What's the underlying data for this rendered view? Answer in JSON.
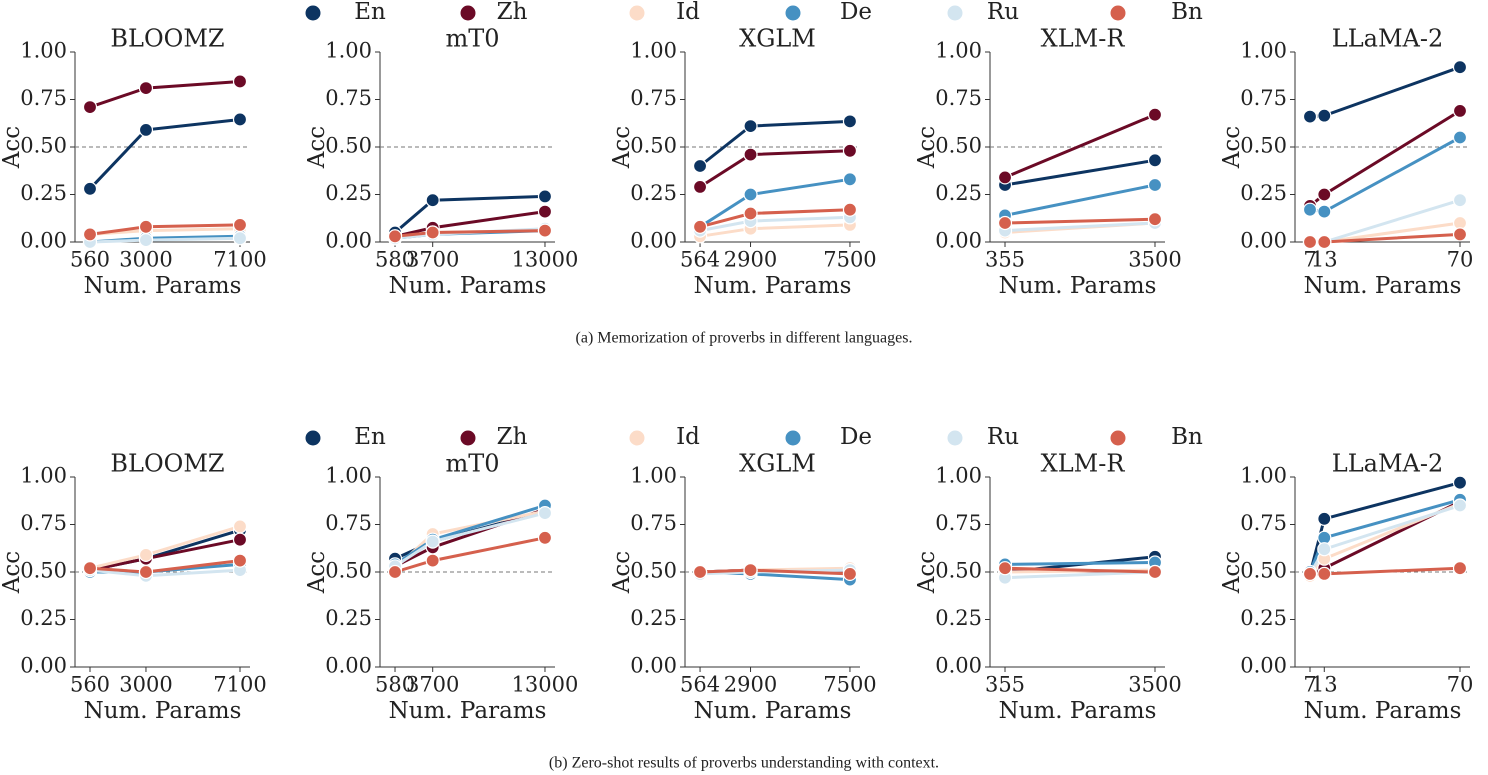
{
  "figures": [
    {
      "legend": [
        {
          "name": "En",
          "color": "#0d3461"
        },
        {
          "name": "Zh",
          "color": "#6b0a26"
        },
        {
          "name": "Id",
          "color": "#fcdcc8"
        },
        {
          "name": "De",
          "color": "#4691c2"
        },
        {
          "name": "Ru",
          "color": "#d3e5f0"
        },
        {
          "name": "Bn",
          "color": "#d5604d"
        }
      ],
      "caption": "(a) Memorization of proverbs in different languages."
    },
    {
      "legend": [
        {
          "name": "En",
          "color": "#0d3461"
        },
        {
          "name": "Zh",
          "color": "#6b0a26"
        },
        {
          "name": "Id",
          "color": "#fcdcc8"
        },
        {
          "name": "De",
          "color": "#4691c2"
        },
        {
          "name": "Ru",
          "color": "#d3e5f0"
        },
        {
          "name": "Bn",
          "color": "#d5604d"
        }
      ],
      "caption": "(b) Zero-shot results of proverbs understanding with context."
    }
  ],
  "chart_data": [
    {
      "type": "line",
      "title": "BLOOMZ",
      "x_label": "Num. Params",
      "y_label": "Acc",
      "x": [
        560,
        3000,
        7100
      ],
      "xlim": [
        124,
        7536
      ],
      "xticks": [
        560,
        3000,
        7100
      ],
      "ylim": [
        0,
        1
      ],
      "yticks": [
        {
          "value": 0,
          "label": "0.00"
        },
        {
          "value": 0.25,
          "label": "0.25"
        },
        {
          "value": 0.5,
          "label": "0.50"
        },
        {
          "value": 0.75,
          "label": "0.75"
        },
        {
          "value": 1,
          "label": "1.00"
        }
      ],
      "hline": 0.5,
      "series": [
        {
          "values": [
            0.28,
            0.59,
            0.645
          ]
        },
        {
          "values": [
            0.71,
            0.81,
            0.845
          ]
        },
        {
          "values": [
            0.04,
            0.06,
            0.07
          ]
        },
        {
          "values": [
            0.0,
            0.02,
            0.03
          ]
        },
        {
          "values": [
            0.0,
            0.01,
            0.02
          ]
        },
        {
          "values": [
            0.04,
            0.08,
            0.09
          ]
        }
      ]
    },
    {
      "type": "line",
      "title": "mT0",
      "x_label": "Num. Params",
      "y_label": "Acc",
      "x": [
        580,
        3700,
        13000
      ],
      "xlim": [
        -250,
        13830
      ],
      "xticks": [
        580,
        3700,
        13000
      ],
      "ylim": [
        0,
        1
      ],
      "yticks": [
        {
          "value": 0,
          "label": "0.00"
        },
        {
          "value": 0.25,
          "label": "0.25"
        },
        {
          "value": 0.5,
          "label": "0.50"
        },
        {
          "value": 0.75,
          "label": "0.75"
        },
        {
          "value": 1,
          "label": "1.00"
        }
      ],
      "hline": 0.5,
      "series": [
        {
          "values": [
            0.05,
            0.22,
            0.24
          ]
        },
        {
          "values": [
            0.03,
            0.075,
            0.16
          ]
        },
        {
          "values": [
            0.02,
            0.05,
            0.06
          ]
        },
        {
          "values": [
            0.02,
            0.04,
            0.06
          ]
        },
        {
          "values": [
            0.02,
            0.04,
            0.07
          ]
        },
        {
          "values": [
            0.03,
            0.05,
            0.06
          ]
        }
      ]
    },
    {
      "type": "line",
      "title": "XGLM",
      "x_label": "Num. Params",
      "y_label": "Acc",
      "x": [
        564,
        2900,
        7500
      ],
      "xlim": [
        99,
        7965
      ],
      "xticks": [
        564,
        2900,
        7500
      ],
      "ylim": [
        0,
        1
      ],
      "yticks": [
        {
          "value": 0,
          "label": "0.00"
        },
        {
          "value": 0.25,
          "label": "0.25"
        },
        {
          "value": 0.5,
          "label": "0.50"
        },
        {
          "value": 0.75,
          "label": "0.75"
        },
        {
          "value": 1,
          "label": "1.00"
        }
      ],
      "hline": 0.5,
      "series": [
        {
          "values": [
            0.4,
            0.61,
            0.635
          ]
        },
        {
          "values": [
            0.29,
            0.46,
            0.48
          ]
        },
        {
          "values": [
            0.03,
            0.07,
            0.09
          ]
        },
        {
          "values": [
            0.08,
            0.25,
            0.33
          ]
        },
        {
          "values": [
            0.06,
            0.11,
            0.13
          ]
        },
        {
          "values": [
            0.08,
            0.15,
            0.17
          ]
        }
      ]
    },
    {
      "type": "line",
      "title": "XLM-R",
      "x_label": "Num. Params",
      "y_label": "Acc",
      "x": [
        355,
        3500
      ],
      "xlim": [
        145,
        3710
      ],
      "xticks": [
        355,
        3500
      ],
      "ylim": [
        0,
        1
      ],
      "yticks": [
        {
          "value": 0,
          "label": "0.00"
        },
        {
          "value": 0.25,
          "label": "0.25"
        },
        {
          "value": 0.5,
          "label": "0.50"
        },
        {
          "value": 0.75,
          "label": "0.75"
        },
        {
          "value": 1,
          "label": "1.00"
        }
      ],
      "hline": 0.5,
      "series": [
        {
          "values": [
            0.3,
            0.43
          ]
        },
        {
          "values": [
            0.34,
            0.67
          ]
        },
        {
          "values": [
            0.05,
            0.1
          ]
        },
        {
          "values": [
            0.14,
            0.3
          ]
        },
        {
          "values": [
            0.06,
            0.1
          ]
        },
        {
          "values": [
            0.1,
            0.12
          ]
        }
      ]
    },
    {
      "type": "line",
      "title": "LLaMA-2",
      "x_label": "Num. Params",
      "y_label": "Acc",
      "x": [
        7,
        13,
        70
      ],
      "xlim": [
        2.8,
        74.2
      ],
      "xticks": [
        7,
        13,
        70
      ],
      "ylim": [
        0,
        1
      ],
      "yticks": [
        {
          "value": 0,
          "label": "0.00"
        },
        {
          "value": 0.25,
          "label": "0.25"
        },
        {
          "value": 0.5,
          "label": "0.50"
        },
        {
          "value": 0.75,
          "label": "0.75"
        },
        {
          "value": 1,
          "label": "1.00"
        }
      ],
      "hline": 0.5,
      "series": [
        {
          "values": [
            0.66,
            0.665,
            0.92
          ]
        },
        {
          "values": [
            0.19,
            0.25,
            0.69
          ]
        },
        {
          "values": [
            0.0,
            0.0,
            0.1
          ]
        },
        {
          "values": [
            0.17,
            0.16,
            0.55
          ]
        },
        {
          "values": [
            0.0,
            0.0,
            0.22
          ]
        },
        {
          "values": [
            0.0,
            0.0,
            0.04
          ]
        }
      ]
    },
    {
      "type": "line",
      "title": "BLOOMZ",
      "x_label": "Num. Params",
      "y_label": "Acc",
      "x": [
        560,
        3000,
        7100
      ],
      "xlim": [
        124,
        7536
      ],
      "xticks": [
        560,
        3000,
        7100
      ],
      "ylim": [
        0,
        1
      ],
      "yticks": [
        {
          "value": 0,
          "label": "0.00"
        },
        {
          "value": 0.25,
          "label": "0.25"
        },
        {
          "value": 0.5,
          "label": "0.50"
        },
        {
          "value": 0.75,
          "label": "0.75"
        },
        {
          "value": 1,
          "label": "1.00"
        }
      ],
      "hline": 0.5,
      "series": [
        {
          "values": [
            0.51,
            0.57,
            0.72
          ]
        },
        {
          "values": [
            0.51,
            0.57,
            0.67
          ]
        },
        {
          "values": [
            0.52,
            0.59,
            0.74
          ]
        },
        {
          "values": [
            0.5,
            0.5,
            0.54
          ]
        },
        {
          "values": [
            0.51,
            0.48,
            0.51
          ]
        },
        {
          "values": [
            0.52,
            0.5,
            0.56
          ]
        }
      ]
    },
    {
      "type": "line",
      "title": "mT0",
      "x_label": "Num. Params",
      "y_label": "Acc",
      "x": [
        580,
        3700,
        13000
      ],
      "xlim": [
        -250,
        13830
      ],
      "xticks": [
        580,
        3700,
        13000
      ],
      "ylim": [
        0,
        1
      ],
      "yticks": [
        {
          "value": 0,
          "label": "0.00"
        },
        {
          "value": 0.25,
          "label": "0.25"
        },
        {
          "value": 0.5,
          "label": "0.50"
        },
        {
          "value": 0.75,
          "label": "0.75"
        },
        {
          "value": 1,
          "label": "1.00"
        }
      ],
      "hline": 0.5,
      "series": [
        {
          "values": [
            0.57,
            0.66,
            0.82
          ]
        },
        {
          "values": [
            0.53,
            0.63,
            0.83
          ]
        },
        {
          "values": [
            0.52,
            0.7,
            0.82
          ]
        },
        {
          "values": [
            0.54,
            0.67,
            0.85
          ]
        },
        {
          "values": [
            0.53,
            0.66,
            0.81
          ]
        },
        {
          "values": [
            0.5,
            0.56,
            0.68
          ]
        }
      ]
    },
    {
      "type": "line",
      "title": "XGLM",
      "x_label": "Num. Params",
      "y_label": "Acc",
      "x": [
        564,
        2900,
        7500
      ],
      "xlim": [
        99,
        7965
      ],
      "xticks": [
        564,
        2900,
        7500
      ],
      "ylim": [
        0,
        1
      ],
      "yticks": [
        {
          "value": 0,
          "label": "0.00"
        },
        {
          "value": 0.25,
          "label": "0.25"
        },
        {
          "value": 0.5,
          "label": "0.50"
        },
        {
          "value": 0.75,
          "label": "0.75"
        },
        {
          "value": 1,
          "label": "1.00"
        }
      ],
      "hline": 0.5,
      "series": [
        {
          "values": [
            0.5,
            0.51,
            0.51
          ]
        },
        {
          "values": [
            0.5,
            0.51,
            0.5
          ]
        },
        {
          "values": [
            0.5,
            0.51,
            0.52
          ]
        },
        {
          "values": [
            0.5,
            0.49,
            0.46
          ]
        },
        {
          "values": [
            0.49,
            0.5,
            0.51
          ]
        },
        {
          "values": [
            0.5,
            0.51,
            0.49
          ]
        }
      ]
    },
    {
      "type": "line",
      "title": "XLM-R",
      "x_label": "Num. Params",
      "y_label": "Acc",
      "x": [
        355,
        3500
      ],
      "xlim": [
        145,
        3710
      ],
      "xticks": [
        355,
        3500
      ],
      "ylim": [
        0,
        1
      ],
      "yticks": [
        {
          "value": 0,
          "label": "0.00"
        },
        {
          "value": 0.25,
          "label": "0.25"
        },
        {
          "value": 0.5,
          "label": "0.50"
        },
        {
          "value": 0.75,
          "label": "0.75"
        },
        {
          "value": 1,
          "label": "1.00"
        }
      ],
      "hline": 0.5,
      "series": [
        {
          "values": [
            0.5,
            0.58
          ]
        },
        {
          "values": [
            0.51,
            0.5
          ]
        },
        {
          "values": [
            0.5,
            0.51
          ]
        },
        {
          "values": [
            0.54,
            0.55
          ]
        },
        {
          "values": [
            0.47,
            0.5
          ]
        },
        {
          "values": [
            0.52,
            0.5
          ]
        }
      ]
    },
    {
      "type": "line",
      "title": "LLaMA-2",
      "x_label": "Num. Params",
      "y_label": "Acc",
      "x": [
        7,
        13,
        70
      ],
      "xlim": [
        2.8,
        74.2
      ],
      "xticks": [
        7,
        13,
        70
      ],
      "ylim": [
        0,
        1
      ],
      "yticks": [
        {
          "value": 0,
          "label": "0.00"
        },
        {
          "value": 0.25,
          "label": "0.25"
        },
        {
          "value": 0.5,
          "label": "0.50"
        },
        {
          "value": 0.75,
          "label": "0.75"
        },
        {
          "value": 1,
          "label": "1.00"
        }
      ],
      "hline": 0.5,
      "series": [
        {
          "values": [
            0.49,
            0.78,
            0.97
          ]
        },
        {
          "values": [
            0.49,
            0.52,
            0.87
          ]
        },
        {
          "values": [
            0.48,
            0.57,
            0.86
          ]
        },
        {
          "values": [
            0.5,
            0.68,
            0.88
          ]
        },
        {
          "values": [
            0.49,
            0.62,
            0.85
          ]
        },
        {
          "values": [
            0.49,
            0.49,
            0.52
          ]
        }
      ]
    }
  ]
}
